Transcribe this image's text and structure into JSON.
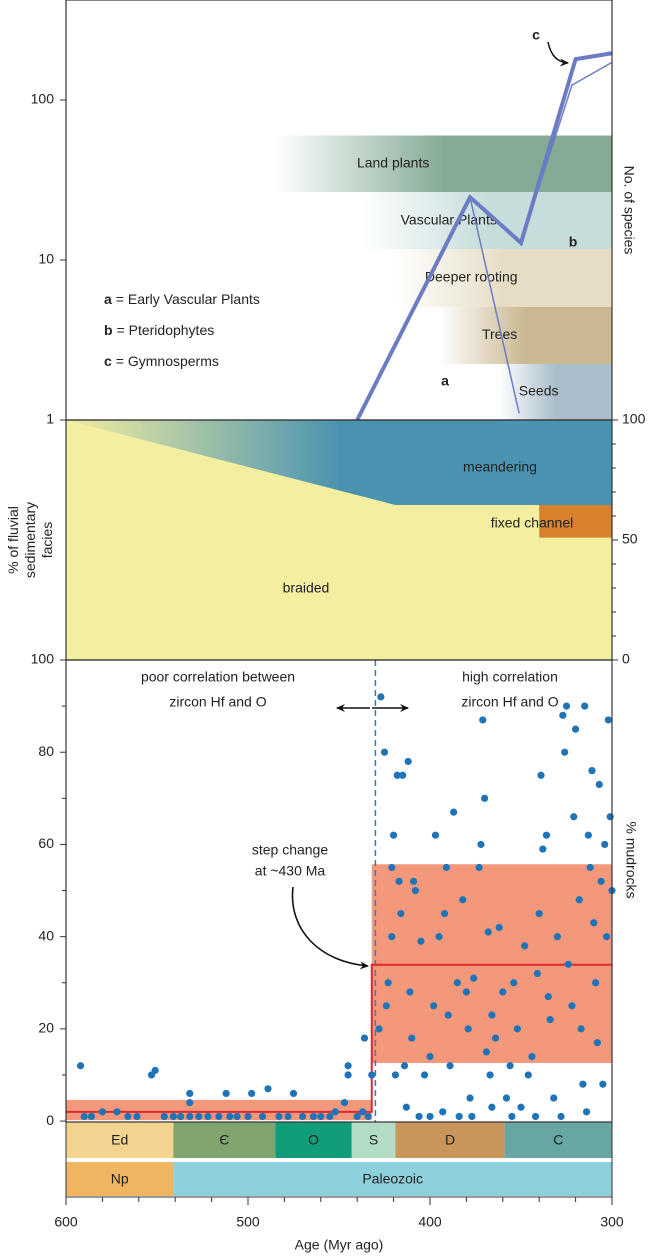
{
  "chart_data": [
    {
      "type": "line",
      "log": true,
      "ylim": [
        1,
        422
      ],
      "yticks": [
        1,
        10,
        100
      ],
      "ylabel": "No. of species",
      "series": [
        {
          "x": [
            440,
            378,
            350,
            320,
            300
          ],
          "values": [
            1,
            24.7,
            12.8,
            180,
            196
          ],
          "color": "#6b7cc4",
          "line_width": 4
        },
        {
          "x": [
            378,
            351
          ],
          "values": [
            24.7,
            1.1
          ],
          "color": "#6b7cc4",
          "line_width": 1.5
        },
        {
          "x": [
            350,
            322,
            300
          ],
          "values": [
            12.8,
            124,
            172
          ],
          "color": "#6b7cc4",
          "line_width": 1.5
        }
      ],
      "bands": [
        {
          "label": "Land plants",
          "start": 485,
          "end": 300,
          "low": 26.6,
          "high": 60,
          "color": "#85ab95"
        },
        {
          "label": "Vascular Plants",
          "start": 438,
          "end": 300,
          "low": 11.7,
          "high": 26.6,
          "color": "#c6dddb"
        },
        {
          "label": "Deeper rooting",
          "start": 419,
          "end": 300,
          "low": 5.1,
          "high": 11.7,
          "color": "#e6ddc4"
        },
        {
          "label": "Trees",
          "start": 395,
          "end": 300,
          "low": 2.24,
          "high": 5.1,
          "color": "#c9b890"
        },
        {
          "label": "Seeds",
          "start": 362,
          "end": 300,
          "low": 1,
          "high": 2.24,
          "color": "#a9bdca"
        }
      ],
      "legend": [
        {
          "key": "a",
          "label": "= Early Vascular Plants"
        },
        {
          "key": "b",
          "label": "= Pteridophytes"
        },
        {
          "key": "c",
          "label": "= Gymnosperms"
        }
      ],
      "annotations": [
        "a",
        "b",
        "c"
      ]
    },
    {
      "type": "area",
      "ylim": [
        0,
        100
      ],
      "yticks": [
        0,
        50,
        100
      ],
      "yticks_minor": [
        10,
        20,
        30,
        40,
        60,
        70,
        80,
        90
      ],
      "ylabel_lines": [
        "% of fluvial",
        "sedimentary",
        "facies"
      ],
      "background": {
        "name": "braided",
        "color": "#f3eea0"
      },
      "regions": [
        {
          "name": "meandering",
          "color": "#4a93b0",
          "x": [
            600,
            419,
            300
          ],
          "lower": [
            100,
            64.6,
            64.6
          ],
          "upper": [
            100,
            100,
            100
          ],
          "fade": true
        },
        {
          "name": "fixed channel",
          "color": "#d8812c",
          "x": [
            340,
            300
          ],
          "lower": [
            51,
            51
          ],
          "upper": [
            64.6,
            64.6
          ],
          "fade": false
        }
      ]
    },
    {
      "type": "scatter",
      "ylim": [
        -0.2,
        100
      ],
      "yticks": [
        0,
        20,
        40,
        60,
        80,
        100
      ],
      "yticks_minor": [
        10,
        30,
        50,
        70,
        90
      ],
      "ylabel": "% mudrocks",
      "color": "#1f74b8",
      "x": [
        592,
        590,
        586,
        580,
        572,
        566,
        561,
        553,
        551,
        546,
        541,
        537,
        532,
        532,
        532,
        527,
        522,
        516,
        512,
        510,
        506,
        500,
        498,
        492,
        489,
        483,
        478,
        475,
        470,
        464,
        460,
        455,
        452,
        447,
        445,
        445,
        440,
        437,
        436,
        434,
        432,
        428,
        427,
        425,
        424,
        423,
        421,
        421,
        420,
        419,
        418,
        417,
        416,
        415,
        414,
        413,
        412,
        411,
        410,
        409,
        408,
        406,
        405,
        403,
        400,
        400,
        398,
        397,
        395,
        393,
        392,
        391,
        390,
        389,
        387,
        385,
        384,
        382,
        380,
        379,
        378,
        377,
        376,
        373,
        372,
        371,
        370,
        369,
        368,
        367,
        366,
        366,
        364,
        362,
        360,
        358,
        356,
        355,
        354,
        352,
        350,
        348,
        346,
        344,
        342,
        341,
        340,
        339,
        338,
        336,
        335,
        334,
        332,
        330,
        328,
        327,
        326,
        325,
        324,
        322,
        321,
        320,
        318,
        317,
        316,
        315,
        314,
        313,
        312,
        311,
        310,
        309,
        308,
        307,
        306,
        305,
        304,
        303,
        302,
        301,
        300
      ],
      "values": [
        12,
        1,
        1,
        2,
        2,
        1,
        1,
        10,
        11,
        1,
        1,
        1,
        1,
        4,
        6,
        1,
        1,
        1,
        6,
        1,
        1,
        1,
        6,
        1,
        7,
        1,
        1,
        6,
        1,
        1,
        1,
        1,
        2,
        4,
        10,
        12,
        1,
        2,
        18,
        1,
        10,
        20,
        92,
        80,
        25,
        30,
        40,
        55,
        62,
        10,
        75,
        52,
        45,
        75,
        12,
        3,
        78,
        28,
        18,
        52,
        50,
        1,
        39,
        10,
        14,
        1,
        25,
        62,
        40,
        2,
        45,
        55,
        23,
        12,
        67,
        30,
        1,
        48,
        28,
        20,
        5,
        1,
        31,
        55,
        60,
        87,
        70,
        15,
        41,
        10,
        3,
        23,
        18,
        42,
        28,
        5,
        12,
        1,
        30,
        20,
        3,
        38,
        10,
        14,
        1,
        32,
        45,
        75,
        59,
        62,
        27,
        22,
        5,
        40,
        1,
        88,
        80,
        90,
        34,
        25,
        66,
        85,
        48,
        20,
        8,
        90,
        2,
        62,
        55,
        76,
        43,
        30,
        17,
        73,
        52,
        8,
        60,
        40,
        87,
        66,
        50
      ],
      "step_line": {
        "x": [
          600,
          432,
          432,
          300
        ],
        "values": [
          2,
          2,
          33.9,
          33.9
        ],
        "color": "#e0282e"
      },
      "ranges": [
        {
          "x0": 600,
          "x1": 432,
          "low": 0.2,
          "high": 4.6
        },
        {
          "x0": 432,
          "x1": 300,
          "low": 12.6,
          "high": 55.7
        }
      ],
      "range_color": "#f4987c",
      "divider": {
        "x": 430,
        "color": "#3b78b9"
      },
      "left_note": [
        "poor correlation between",
        "zircon Hf and O"
      ],
      "right_note": [
        "high correlation",
        "zircon Hf and O"
      ],
      "step_note": [
        "step change",
        "at ~430 Ma"
      ]
    },
    {
      "type": "timescale",
      "xlim": [
        600,
        300
      ],
      "xticks": [
        600,
        500,
        400,
        300
      ],
      "xticks_minor": [
        580,
        560,
        540,
        520,
        480,
        460,
        440,
        420,
        380,
        360,
        340,
        320
      ],
      "xlabel": "Age (Myr ago)",
      "periods": [
        {
          "label": "Ed",
          "start": 600,
          "end": 541,
          "color": "#f2d38f"
        },
        {
          "label": "Є",
          "start": 541,
          "end": 485,
          "color": "#7fa46d"
        },
        {
          "label": "O",
          "start": 485,
          "end": 443,
          "color": "#0f9d7a"
        },
        {
          "label": "S",
          "start": 443,
          "end": 419,
          "color": "#b3dcc4"
        },
        {
          "label": "D",
          "start": 419,
          "end": 359,
          "color": "#c8965a"
        },
        {
          "label": "C",
          "start": 359,
          "end": 300,
          "color": "#67a7a3"
        }
      ],
      "eras": [
        {
          "label": "Np",
          "start": 600,
          "end": 541,
          "color": "#f0b560"
        },
        {
          "label": "Paleozoic",
          "start": 541,
          "end": 300,
          "color": "#8cd0dc"
        }
      ]
    }
  ]
}
